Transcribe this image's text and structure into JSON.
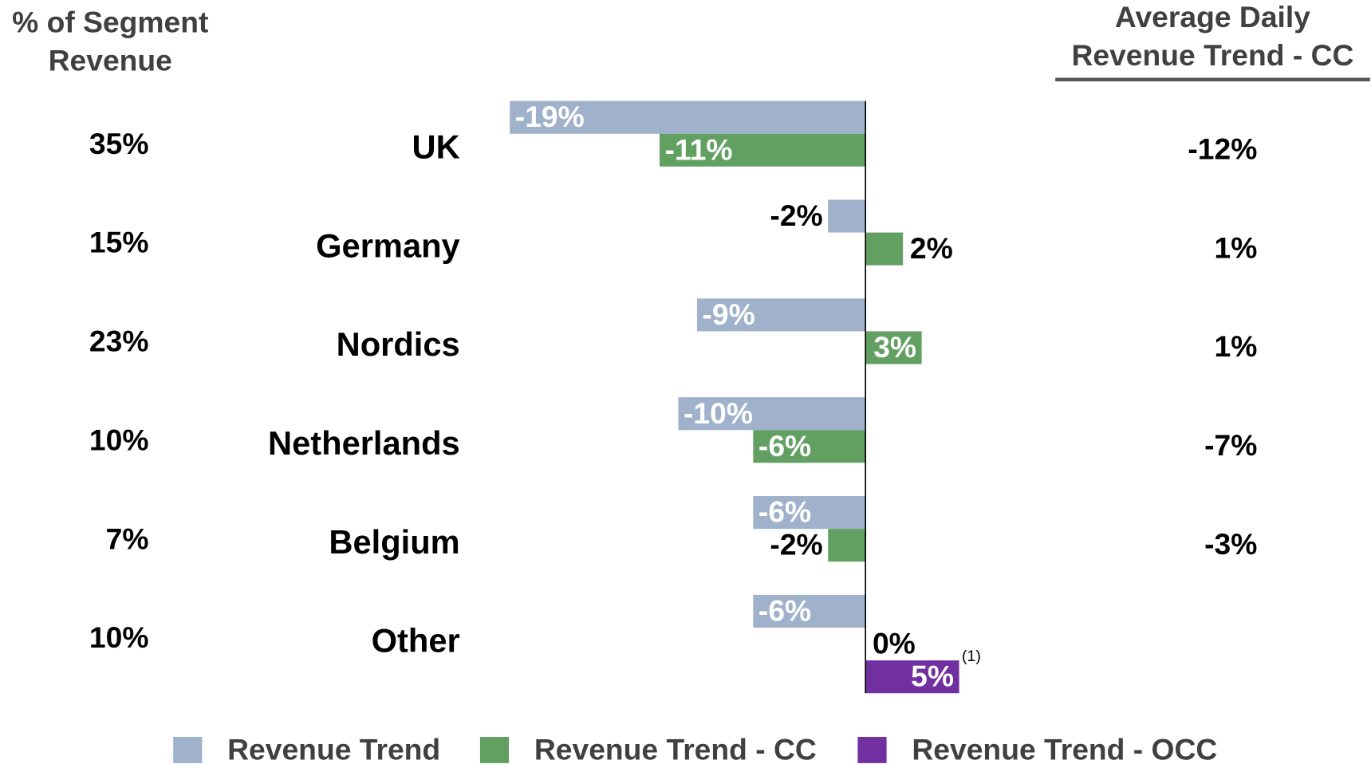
{
  "chart_data": {
    "type": "bar",
    "orientation": "horizontal",
    "categories": [
      "UK",
      "Germany",
      "Nordics",
      "Netherlands",
      "Belgium",
      "Other"
    ],
    "series": [
      {
        "name": "Revenue Trend",
        "color": "#9fb1cb",
        "values": [
          -19,
          -2,
          -9,
          -10,
          -6,
          -6
        ],
        "value_labels": [
          "-19%",
          "-2%",
          "-9%",
          "-10%",
          "-6%",
          "-6%"
        ]
      },
      {
        "name": "Revenue Trend - CC",
        "color": "#62a062",
        "values": [
          -11,
          2,
          3,
          -6,
          -2,
          0
        ],
        "value_labels": [
          "-11%",
          "2%",
          "3%",
          "-6%",
          "-2%",
          "0%"
        ]
      },
      {
        "name": "Revenue Trend - OCC",
        "color": "#7030a0",
        "values": [
          null,
          null,
          null,
          null,
          null,
          5
        ],
        "value_labels": [
          null,
          null,
          null,
          null,
          null,
          "5%"
        ]
      }
    ],
    "xlim": [
      -19,
      5
    ],
    "annotations": [
      "(1)"
    ],
    "segment_share": {
      "header": [
        "% of Segment",
        "Revenue"
      ],
      "values": [
        35,
        15,
        23,
        10,
        7,
        10
      ],
      "value_labels": [
        "35%",
        "15%",
        "23%",
        "10%",
        "7%",
        "10%"
      ]
    },
    "average_daily": {
      "header": [
        "Average Daily",
        "Revenue Trend - CC"
      ],
      "values": [
        -12,
        1,
        1,
        -7,
        -3,
        null
      ],
      "value_labels": [
        "-12%",
        "1%",
        "1%",
        "-7%",
        "-3%",
        null
      ]
    }
  }
}
